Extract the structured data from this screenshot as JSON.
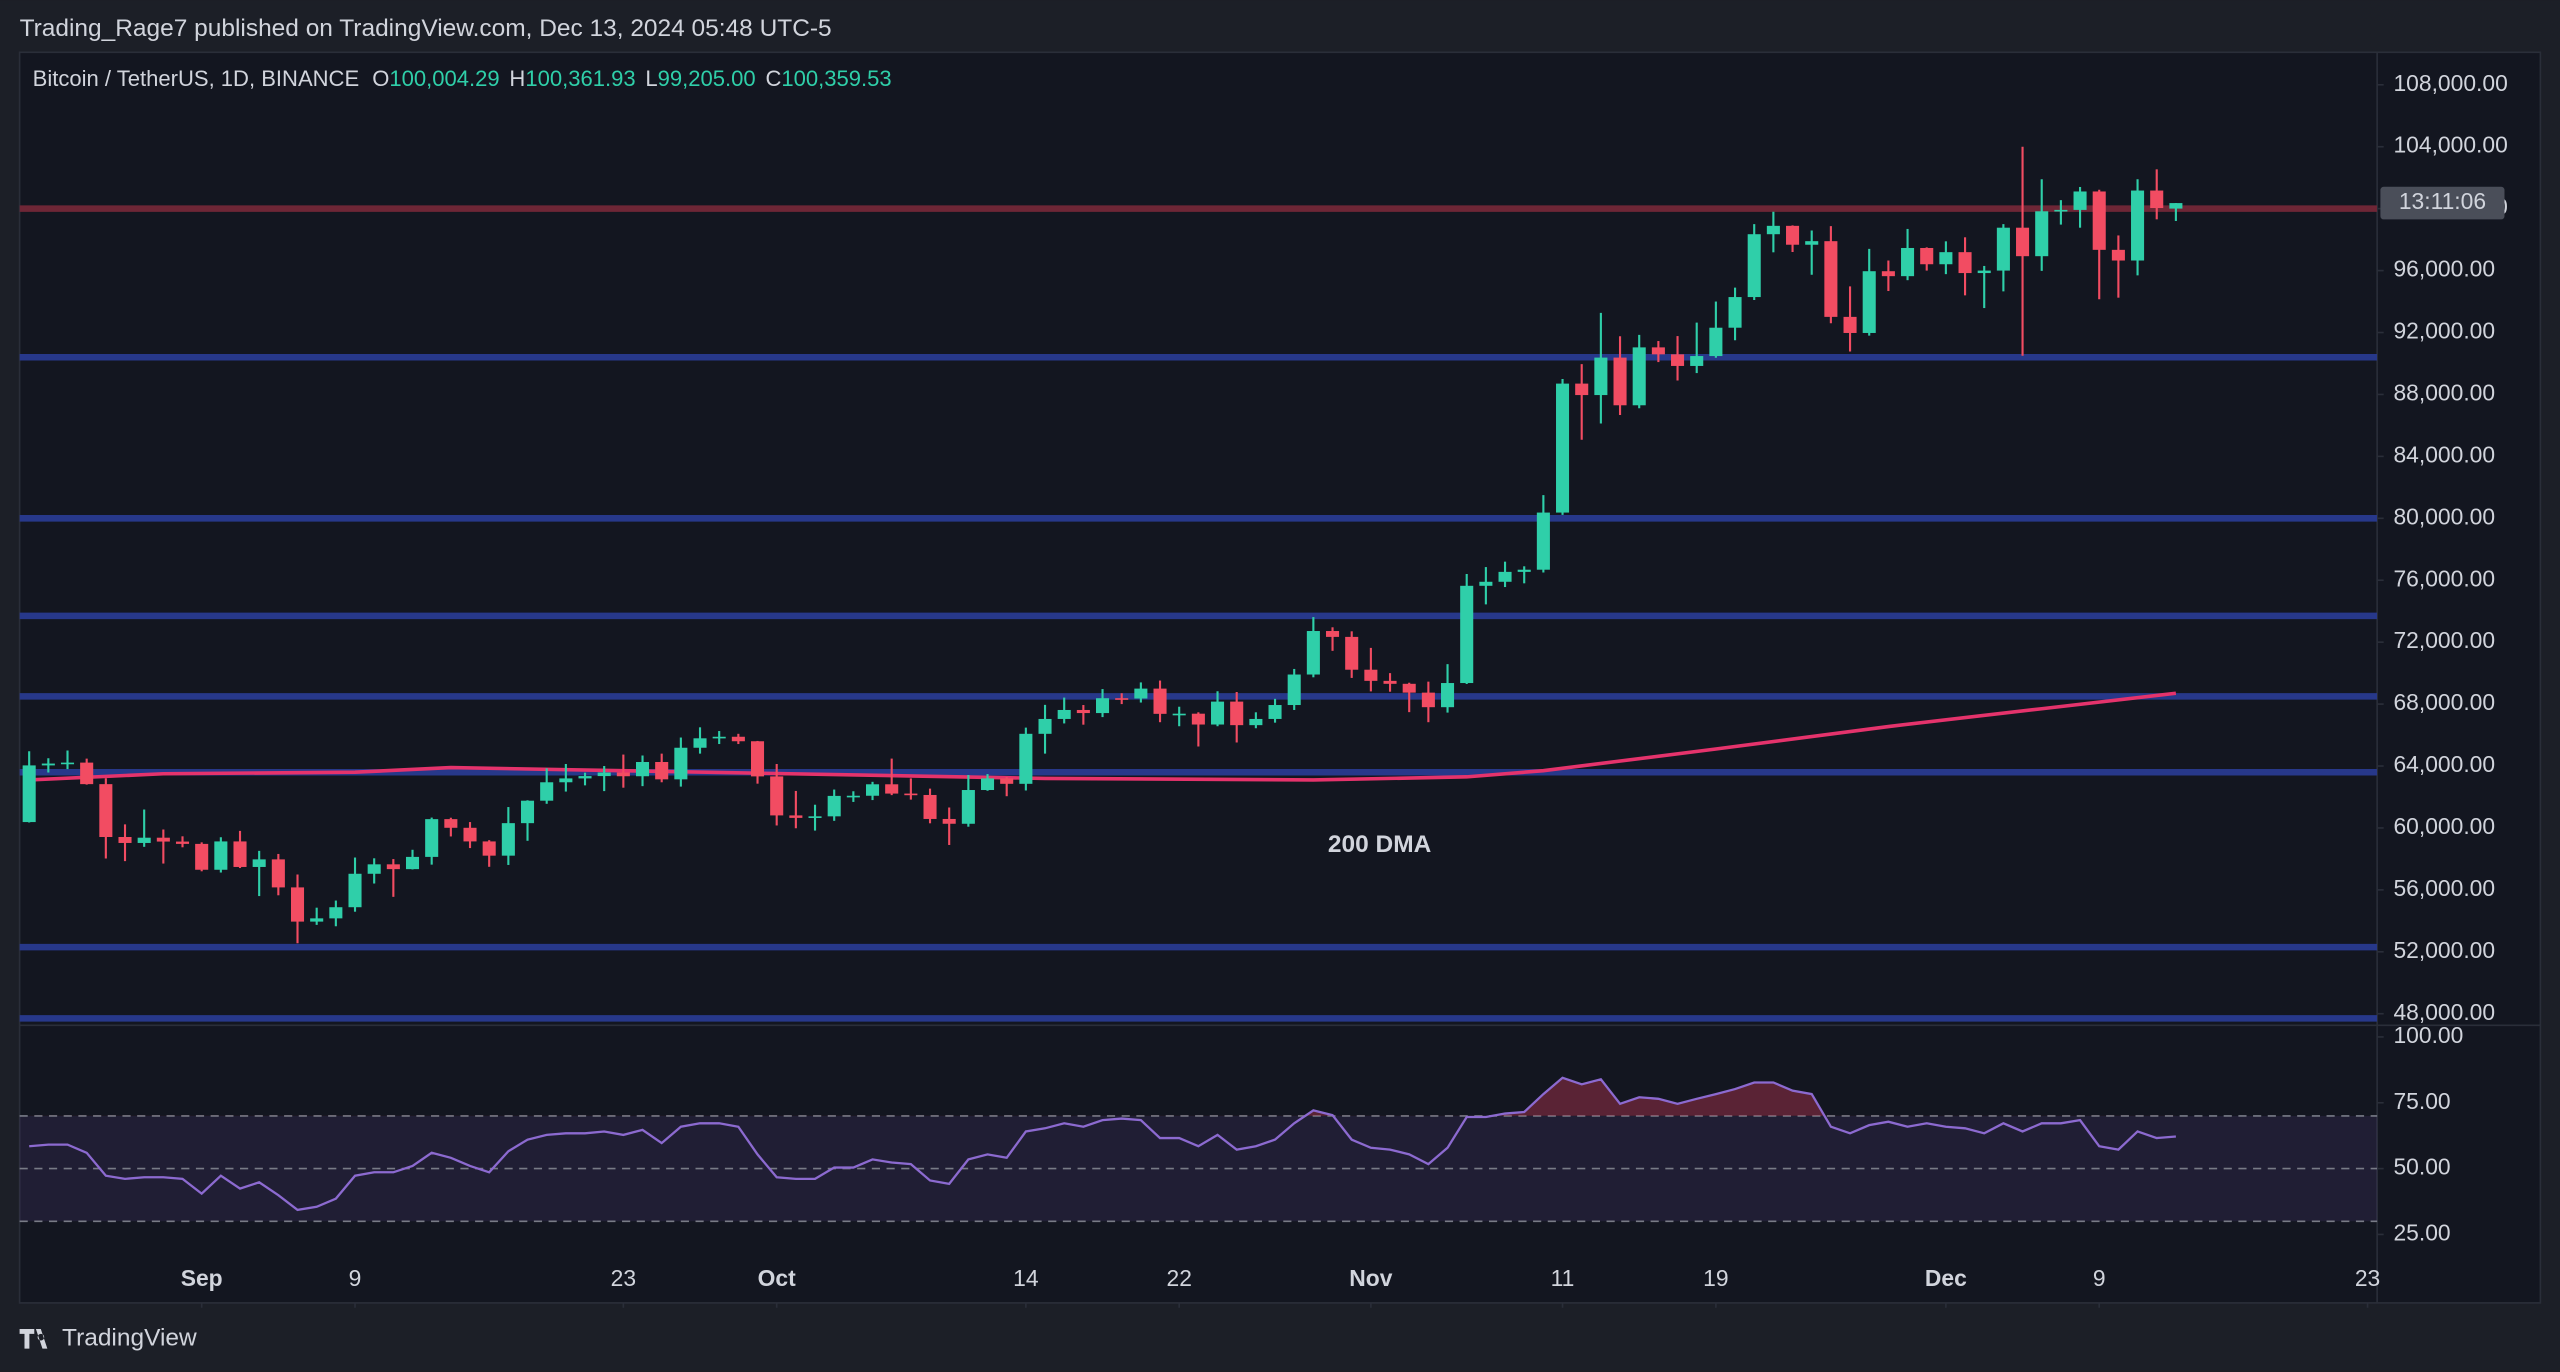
{
  "header": {
    "byline": "Trading_Rage7 published on TradingView.com, Dec 13, 2024 05:48 UTC-5"
  },
  "chart_data": {
    "type": "candlestick",
    "title": "Bitcoin / TetherUS, 1D, BINANCE",
    "last_keys": [
      "O",
      "H",
      "L",
      "C"
    ],
    "last_labels": [
      "100,004.29",
      "100,361.93",
      "99,205.00",
      "100,359.53"
    ],
    "up_color": "#2fcfa9",
    "down_color": "#f24c62",
    "open": [
      60380,
      64040,
      64160,
      64220,
      62830,
      59415,
      59030,
      59370,
      59120,
      58970,
      57300,
      59130,
      57480,
      57970,
      56160,
      53950,
      54160,
      54880,
      57040,
      57650,
      57340,
      58130,
      60570,
      60010,
      59130,
      58210,
      60310,
      61760,
      62950,
      63200,
      63350,
      63580,
      63340,
      64260,
      63140,
      65180,
      65790,
      65890,
      65600,
      63330,
      60810,
      60650,
      60750,
      62070,
      62080,
      62820,
      62220,
      62130,
      60580,
      60270,
      62450,
      63200,
      62850,
      66080,
      67040,
      67620,
      67420,
      68380,
      68360,
      69000,
      67370,
      67380,
      66680,
      68160,
      66640,
      67040,
      67940,
      69910,
      72720,
      72340,
      70220,
      69500,
      69310,
      68740,
      67800,
      69360,
      75640,
      75900,
      76540,
      76680,
      80370,
      88700,
      87960,
      90380,
      87300,
      91040,
      90590,
      89840,
      90480,
      92310,
      94290,
      98350,
      98890,
      97670,
      97900,
      93010,
      91970,
      95960,
      95640,
      97460,
      96410,
      97190,
      95840,
      96000,
      98770,
      96930,
      99830,
      99920,
      101110,
      97340,
      96650,
      101170,
      100004.29
    ],
    "high": [
      64950,
      64500,
      65000,
      64480,
      63210,
      60230,
      61190,
      59900,
      59460,
      59070,
      59400,
      59810,
      58520,
      58320,
      56990,
      54850,
      55310,
      58090,
      58040,
      57990,
      58590,
      60670,
      60660,
      60380,
      59210,
      61350,
      61790,
      63850,
      64130,
      63570,
      64000,
      64740,
      64680,
      64800,
      65840,
      66500,
      66260,
      66080,
      65620,
      64130,
      62390,
      61500,
      62480,
      62370,
      62980,
      64480,
      63200,
      62540,
      61320,
      63420,
      63480,
      63290,
      66480,
      67950,
      68420,
      67940,
      68970,
      68700,
      69400,
      69520,
      67830,
      67470,
      68830,
      68780,
      67470,
      68340,
      70270,
      73620,
      72960,
      72700,
      71630,
      70000,
      69380,
      69450,
      70580,
      76400,
      76850,
      77200,
      76900,
      81500,
      89000,
      89960,
      93270,
      91760,
      91850,
      91450,
      91770,
      92640,
      94000,
      94900,
      99000,
      99800,
      98920,
      98590,
      98870,
      94980,
      97400,
      96650,
      98690,
      97500,
      97890,
      98150,
      96300,
      99000,
      104000,
      101900,
      100550,
      101400,
      101220,
      98270,
      101900,
      102540,
      100361.93
    ],
    "low": [
      60350,
      63580,
      63800,
      62800,
      58030,
      57860,
      58780,
      57700,
      58750,
      57200,
      57120,
      57410,
      55600,
      55650,
      52550,
      53740,
      53650,
      54590,
      56410,
      55550,
      57320,
      57630,
      59450,
      58700,
      57490,
      57610,
      59170,
      61560,
      62350,
      62750,
      62380,
      62600,
      62700,
      62950,
      62670,
      64800,
      65420,
      65420,
      62860,
      60160,
      59980,
      59830,
      60460,
      61680,
      61800,
      62120,
      61830,
      60300,
      58900,
      60080,
      62400,
      62050,
      62420,
      64800,
      66750,
      66670,
      67160,
      68000,
      68100,
      66830,
      66570,
      65260,
      66570,
      65520,
      66440,
      66800,
      67620,
      69730,
      71440,
      69690,
      68820,
      68800,
      67480,
      66830,
      67450,
      69300,
      74440,
      75560,
      75800,
      76500,
      80220,
      85070,
      86120,
      86670,
      87110,
      90090,
      88900,
      89380,
      90370,
      91500,
      94100,
      97180,
      97200,
      95730,
      92600,
      90770,
      91800,
      94680,
      95380,
      96000,
      95770,
      94400,
      93580,
      94660,
      90500,
      95980,
      98970,
      98770,
      94150,
      94250,
      95690,
      99310,
      99205
    ],
    "close": [
      64040,
      64160,
      64220,
      62830,
      59415,
      59030,
      59370,
      59120,
      58970,
      57300,
      59130,
      57480,
      57970,
      56160,
      53950,
      54160,
      54880,
      57040,
      57650,
      57340,
      58130,
      60570,
      60010,
      59130,
      58210,
      60310,
      61760,
      62950,
      63200,
      63350,
      63580,
      63340,
      64260,
      63140,
      65180,
      65790,
      65890,
      65600,
      63330,
      60810,
      60650,
      60750,
      62070,
      62080,
      62820,
      62220,
      62130,
      60580,
      60270,
      62450,
      63200,
      62850,
      66080,
      67040,
      67620,
      67420,
      68380,
      68360,
      69000,
      67370,
      67380,
      66680,
      68160,
      66640,
      67040,
      67940,
      69910,
      72720,
      72340,
      70220,
      69500,
      69310,
      68740,
      67800,
      69360,
      75640,
      75900,
      76540,
      76680,
      80370,
      88700,
      87960,
      90380,
      87300,
      91040,
      90590,
      89840,
      90480,
      92310,
      94290,
      98350,
      98890,
      97670,
      97900,
      93010,
      91970,
      95960,
      95640,
      97460,
      96410,
      97190,
      95840,
      96000,
      98770,
      96930,
      99830,
      99920,
      101110,
      97340,
      96650,
      101170,
      100040,
      100359.53
    ],
    "xlim": [
      -0.5,
      122.5
    ],
    "xticks": [
      {
        "value": 9,
        "label": "Sep"
      },
      {
        "value": 17,
        "label": "9"
      },
      {
        "value": 31,
        "label": "23"
      },
      {
        "value": 39,
        "label": "Oct"
      },
      {
        "value": 52,
        "label": "14"
      },
      {
        "value": 60,
        "label": "22"
      },
      {
        "value": 70,
        "label": "Nov"
      },
      {
        "value": 80,
        "label": "11"
      },
      {
        "value": 88,
        "label": "19"
      },
      {
        "value": 100,
        "label": "Dec"
      },
      {
        "value": 108,
        "label": "9"
      },
      {
        "value": 122,
        "label": "23"
      }
    ],
    "ylim": [
      47250,
      110100
    ],
    "yticks": [
      {
        "value": 108000,
        "label": "108,000.00"
      },
      {
        "value": 104000,
        "label": "104,000.00"
      },
      {
        "value": 100000,
        "label": "100,000.00"
      },
      {
        "value": 96000,
        "label": "96,000.00"
      },
      {
        "value": 92000,
        "label": "92,000.00"
      },
      {
        "value": 88000,
        "label": "88,000.00"
      },
      {
        "value": 84000,
        "label": "84,000.00"
      },
      {
        "value": 80000,
        "label": "80,000.00"
      },
      {
        "value": 76000,
        "label": "76,000.00"
      },
      {
        "value": 72000,
        "label": "72,000.00"
      },
      {
        "value": 68000,
        "label": "68,000.00"
      },
      {
        "value": 64000,
        "label": "64,000.00"
      },
      {
        "value": 60000,
        "label": "60,000.00"
      },
      {
        "value": 56000,
        "label": "56,000.00"
      },
      {
        "value": 52000,
        "label": "52,000.00"
      },
      {
        "value": 48000,
        "label": "48,000.00"
      }
    ],
    "levels": [
      {
        "value": 100000,
        "color": "#6e2636"
      },
      {
        "value": 90400,
        "color": "#27388a"
      },
      {
        "value": 80000,
        "color": "#27388a"
      },
      {
        "value": 73700,
        "color": "#27388a"
      },
      {
        "value": 68500,
        "color": "#27388a"
      },
      {
        "value": 63600,
        "color": "#27388a"
      },
      {
        "value": 52300,
        "color": "#27388a"
      },
      {
        "value": 47700,
        "color": "#27388a"
      }
    ],
    "overlay": {
      "name": "200 DMA",
      "color": "#e5336c",
      "x": [
        0,
        7,
        17,
        22,
        53,
        67,
        75,
        79,
        88,
        97,
        105,
        112
      ],
      "values": [
        63100,
        63500,
        63600,
        63900,
        63200,
        63100,
        63300,
        63700,
        65100,
        66550,
        67700,
        68700
      ]
    },
    "countdown": "13:11:06",
    "rsi": {
      "type": "line",
      "color": "#8c6ad0",
      "band_color": "#7e57c2",
      "overbought_color": "#b2344f",
      "values": [
        58.5,
        59.1,
        59.1,
        56,
        47.3,
        46.1,
        46.7,
        46.7,
        46.1,
        40.5,
        47.3,
        42.4,
        44.8,
        39.9,
        34.3,
        35.5,
        38.6,
        47.3,
        48.6,
        48.6,
        51,
        56,
        54.1,
        51,
        48.6,
        56.6,
        61,
        62.8,
        63.4,
        63.4,
        64.1,
        62.8,
        64.7,
        59.7,
        65.9,
        67.2,
        67.2,
        65.9,
        55.4,
        46.7,
        46.1,
        46.1,
        50.4,
        50.4,
        53.5,
        52.3,
        51.7,
        45.5,
        44.2,
        53.5,
        55.4,
        54.1,
        64.1,
        65.3,
        67.2,
        65.9,
        68.4,
        69,
        68.4,
        61.6,
        61.6,
        58.5,
        62.8,
        57.2,
        58.5,
        61,
        67.2,
        72.1,
        70.3,
        61,
        57.9,
        57.2,
        55.4,
        51.7,
        57.9,
        69.6,
        69.6,
        70.9,
        71.5,
        78.3,
        84.5,
        82,
        83.9,
        74.6,
        77.1,
        76.5,
        74.6,
        76.5,
        78.3,
        80.2,
        82.7,
        82.7,
        79.6,
        78.3,
        65.9,
        63.4,
        66.5,
        67.8,
        65.9,
        67.2,
        65.9,
        65.3,
        63.4,
        67.2,
        64.1,
        67.2,
        67.2,
        68.4,
        58.5,
        57.2,
        64.1,
        61.6,
        62.2
      ],
      "ylim": [
        -1,
        104.4
      ],
      "yticks": [
        {
          "value": 100,
          "label": "100.00"
        },
        {
          "value": 75,
          "label": "75.00"
        },
        {
          "value": 50,
          "label": "50.00"
        },
        {
          "value": 25,
          "label": "25.00"
        }
      ],
      "levels": [
        70,
        50,
        30
      ]
    }
  },
  "footer": {
    "brand": "TradingView"
  }
}
